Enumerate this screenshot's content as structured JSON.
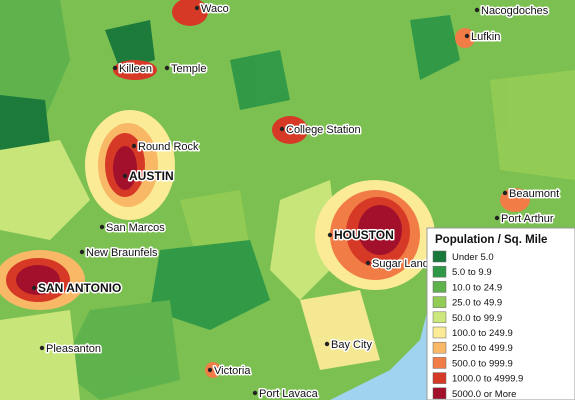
{
  "map": {
    "cities": [
      "Waco",
      "Nacogdoches",
      "Lufkin",
      "Killeen",
      "Temple",
      "College Station",
      "Round Rock",
      "AUSTIN",
      "Beaumont",
      "Port Arthur",
      "San Marcos",
      "HOUSTON",
      "Sugar Land",
      "New Braunfels",
      "SAN ANTONIO",
      "Pleasanton",
      "Bay City",
      "Victoria",
      "Port Lavaca"
    ],
    "legend": {
      "title": "Population / Sq. Mile",
      "items": [
        {
          "label": "Under 5.0",
          "color": "#17783a"
        },
        {
          "label": "5.0 to 9.9",
          "color": "#2f9847"
        },
        {
          "label": "10.0 to 24.9",
          "color": "#5eb24c"
        },
        {
          "label": "25.0 to 49.9",
          "color": "#93cc55"
        },
        {
          "label": "50.0 to 99.9",
          "color": "#cce77c"
        },
        {
          "label": "100.0 to 249.9",
          "color": "#fbeb97"
        },
        {
          "label": "250.0 to 499.9",
          "color": "#f9b866"
        },
        {
          "label": "500.0 to 999.9",
          "color": "#f17c46"
        },
        {
          "label": "1000.0 to 4999.9",
          "color": "#d63a27"
        },
        {
          "label": "5000.0 or More",
          "color": "#a3102c"
        }
      ]
    }
  }
}
